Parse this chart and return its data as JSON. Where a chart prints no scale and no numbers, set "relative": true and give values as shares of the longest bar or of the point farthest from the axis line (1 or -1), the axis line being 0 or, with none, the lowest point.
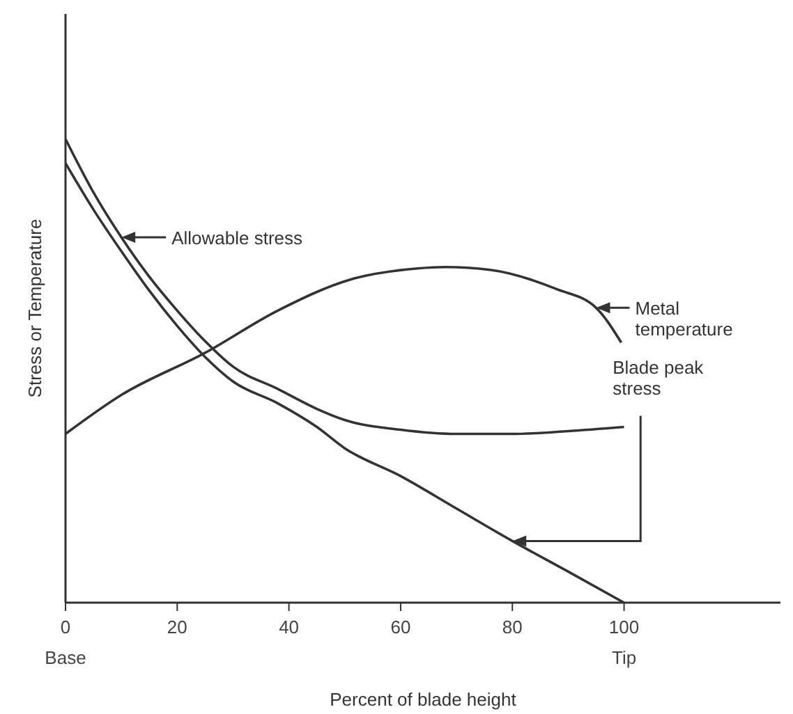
{
  "chart_data": {
    "type": "line",
    "relative": true,
    "xlabel": "Percent of blade height",
    "ylabel": "Stress or Temperature",
    "xlim": [
      0,
      128
    ],
    "xticks": [
      {
        "value": 0,
        "label": "0\nBase"
      },
      20,
      40,
      60,
      80,
      {
        "value": 100,
        "label": "100\nTip"
      }
    ],
    "marker": "none",
    "line_style": "solid",
    "series": [
      {
        "color": "#333333",
        "x": [
          0,
          5,
          10,
          15,
          20,
          25,
          30,
          38,
          45,
          50,
          60,
          70,
          80,
          90,
          100
        ],
        "values": [
          1,
          0.885,
          0.788,
          0.703,
          0.63,
          0.564,
          0.509,
          0.461,
          0.418,
          0.394,
          0.373,
          0.364,
          0.364,
          0.37,
          0.379
        ]
      },
      {
        "color": "#333333",
        "x": [
          0,
          5,
          10,
          15,
          20,
          25,
          30,
          38,
          45,
          50,
          60,
          70,
          80,
          90,
          100
        ],
        "values": [
          0.948,
          0.848,
          0.758,
          0.673,
          0.597,
          0.53,
          0.477,
          0.43,
          0.379,
          0.333,
          0.273,
          0.203,
          0.133,
          0.067,
          0
        ]
      },
      {
        "color": "#333333",
        "x": [
          0,
          10,
          25,
          38,
          51,
          63,
          68,
          76,
          88,
          95,
          99.5
        ],
        "values": [
          0.364,
          0.448,
          0.539,
          0.63,
          0.697,
          0.721,
          0.724,
          0.718,
          0.676,
          0.636,
          0.561
        ]
      }
    ],
    "annotations": [
      {
        "text": "Allowable stress",
        "x": 10,
        "y": 0.788
      },
      {
        "text": "Metal temperature",
        "x": 95,
        "y": 0.636
      },
      {
        "text": "Blade peak stress",
        "x": 80,
        "y": 0.133
      }
    ]
  }
}
